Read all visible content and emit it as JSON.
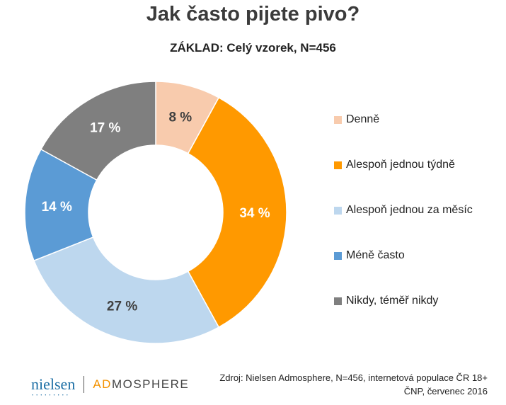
{
  "chart_data": {
    "type": "pie",
    "donut": true,
    "title": "Jak často pijete pivo?",
    "subtitle": "ZÁKLAD: Celý vzorek, N=456",
    "unit": "%",
    "legend_position": "right",
    "categories": [
      "Denně",
      "Alespoň jednou týdně",
      "Alespoň jednou za měsíc",
      "Méně často",
      "Nikdy, téměř nikdy"
    ],
    "values": [
      8,
      34,
      27,
      14,
      17
    ],
    "labels": [
      "8 %",
      "34 %",
      "27 %",
      "14 %",
      "17 %"
    ],
    "colors": [
      "#F8CBAD",
      "#FF9900",
      "#BDD7EE",
      "#5B9BD5",
      "#7F7F7F"
    ],
    "label_colors": [
      "#404040",
      "#ffffff",
      "#404040",
      "#ffffff",
      "#ffffff"
    ]
  },
  "footer": {
    "logo_nielsen": "nielsen",
    "logo_admosphere_accent": "AD",
    "logo_admosphere_rest": "MOSPHERE",
    "source_line1": "Zdroj: Nielsen Admosphere, N=456, internetová populace ČR 18+",
    "source_line2": "ČNP, červenec 2016"
  }
}
